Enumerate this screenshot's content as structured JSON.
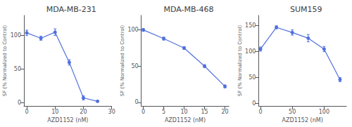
{
  "chart_data": [
    {
      "type": "line",
      "title": "MDA-MB-231",
      "xlabel": "AZD1152 (nM)",
      "ylabel": "SF (% Normalized to Control)",
      "x": [
        0,
        5,
        10,
        15,
        20,
        25
      ],
      "values": [
        104,
        96,
        105,
        60,
        7,
        2
      ],
      "yerr": [
        4,
        3,
        5,
        4,
        3,
        1
      ],
      "xlim": [
        -1,
        30
      ],
      "xticks": [
        0,
        10,
        20,
        30
      ],
      "ylim": [
        -5,
        130
      ],
      "yticks": [
        0,
        50,
        100
      ],
      "marker": "circle",
      "line_style": "solid",
      "grid": false
    },
    {
      "type": "line",
      "title": "MDA-MB-468",
      "xlabel": "AZD1152 (nM)",
      "ylabel": "SF (% Normalized to Control)",
      "x": [
        0,
        5,
        10,
        15,
        20
      ],
      "values": [
        100,
        88,
        75,
        50,
        22
      ],
      "yerr": [
        2,
        2,
        2,
        2,
        2
      ],
      "xlim": [
        -0.5,
        21
      ],
      "xticks": [
        0,
        5,
        10,
        15,
        20
      ],
      "ylim": [
        -5,
        120
      ],
      "yticks": [
        0,
        50,
        100
      ],
      "marker": "circle",
      "line_style": "solid",
      "grid": false
    },
    {
      "type": "line",
      "title": "SUM159",
      "xlabel": "AZD1152 (nM)",
      "ylabel": "SF (% Normalized to Control)",
      "x": [
        0,
        25,
        50,
        75,
        100,
        125
      ],
      "values": [
        105,
        147,
        137,
        126,
        105,
        46
      ],
      "yerr": [
        4,
        3,
        5,
        7,
        5,
        4
      ],
      "xlim": [
        -3,
        135
      ],
      "xticks": [
        0,
        50,
        100
      ],
      "ylim": [
        -5,
        170
      ],
      "yticks": [
        0,
        50,
        100,
        150
      ],
      "marker": "circle",
      "line_style": "solid",
      "grid": false
    }
  ]
}
